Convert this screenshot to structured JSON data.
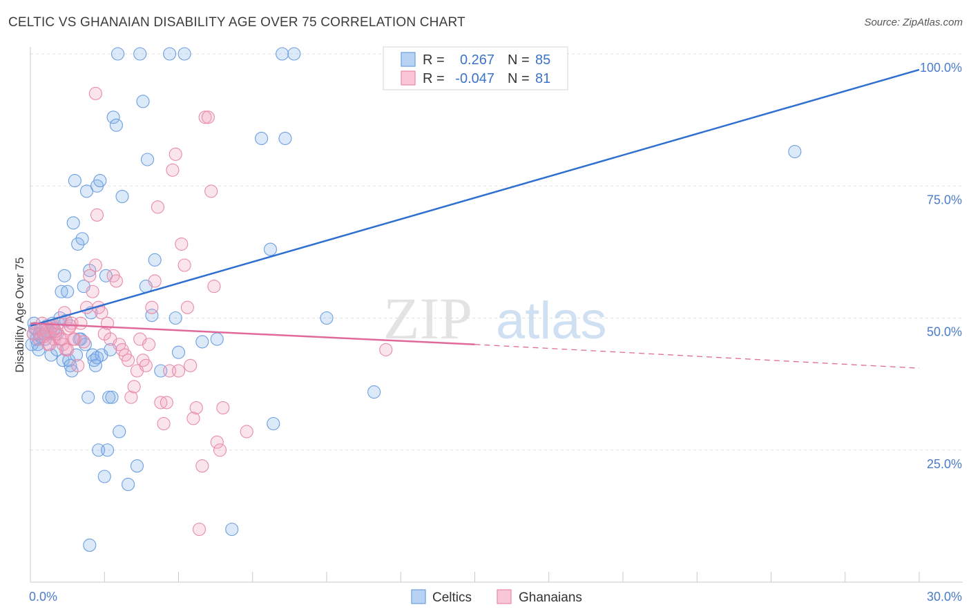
{
  "title": "CELTIC VS GHANAIAN DISABILITY AGE OVER 75 CORRELATION CHART",
  "source": "Source: ZipAtlas.com",
  "watermark": {
    "zip": "ZIP",
    "atlas": "atlas"
  },
  "chart_data": {
    "type": "scatter",
    "xlabel": "",
    "ylabel": "Disability Age Over 75",
    "xlim": [
      0,
      30
    ],
    "ylim": [
      0,
      102
    ],
    "x_tick_labels": [
      "0.0%",
      "30.0%"
    ],
    "y_ticks": [
      25,
      50,
      75,
      100
    ],
    "y_tick_labels": [
      "25.0%",
      "50.0%",
      "75.0%",
      "100.0%"
    ],
    "legend": {
      "r_label": "R =",
      "n_label": "N =",
      "entries": [
        {
          "name": "Celtics",
          "r": "0.267",
          "n": "85",
          "color": "#6b9ee0"
        },
        {
          "name": "Ghanaians",
          "r": "-0.047",
          "n": "81",
          "color": "#e88aa8"
        }
      ]
    },
    "series": [
      {
        "name": "Celtics",
        "color": "#6b9ee0",
        "trend": {
          "x0": 0,
          "y0": 48.5,
          "x1": 30,
          "y1": 97
        },
        "points": [
          [
            0.1,
            47
          ],
          [
            0.15,
            48
          ],
          [
            0.2,
            46
          ],
          [
            0.25,
            45
          ],
          [
            0.3,
            47
          ],
          [
            0.35,
            46.5
          ],
          [
            0.4,
            48
          ],
          [
            0.45,
            47
          ],
          [
            0.5,
            46
          ],
          [
            0.55,
            48.5
          ],
          [
            0.6,
            47
          ],
          [
            0.65,
            47.5
          ],
          [
            0.7,
            43
          ],
          [
            0.75,
            49
          ],
          [
            0.8,
            48
          ],
          [
            0.85,
            47
          ],
          [
            0.9,
            44
          ],
          [
            1.0,
            50
          ],
          [
            1.05,
            55
          ],
          [
            1.1,
            42
          ],
          [
            1.15,
            58
          ],
          [
            1.2,
            49.5
          ],
          [
            1.25,
            55
          ],
          [
            1.3,
            42
          ],
          [
            1.35,
            41
          ],
          [
            1.4,
            40
          ],
          [
            1.45,
            68
          ],
          [
            1.5,
            76
          ],
          [
            1.55,
            43
          ],
          [
            1.6,
            64
          ],
          [
            1.65,
            46
          ],
          [
            1.7,
            46
          ],
          [
            1.75,
            65
          ],
          [
            1.8,
            56
          ],
          [
            1.85,
            45
          ],
          [
            1.9,
            74
          ],
          [
            1.95,
            35
          ],
          [
            2.0,
            59
          ],
          [
            2.05,
            51
          ],
          [
            2.1,
            43
          ],
          [
            2.15,
            42
          ],
          [
            2.2,
            41
          ],
          [
            2.25,
            75
          ],
          [
            2.3,
            25
          ],
          [
            2.35,
            76
          ],
          [
            2.4,
            43
          ],
          [
            2.5,
            20
          ],
          [
            2.55,
            58
          ],
          [
            2.6,
            25
          ],
          [
            2.65,
            35
          ],
          [
            2.7,
            44
          ],
          [
            2.75,
            35
          ],
          [
            2.8,
            88
          ],
          [
            2.9,
            86.5
          ],
          [
            2.95,
            100
          ],
          [
            3.0,
            28.5
          ],
          [
            3.1,
            73
          ],
          [
            3.3,
            18.5
          ],
          [
            3.6,
            22
          ],
          [
            3.7,
            100
          ],
          [
            3.8,
            91
          ],
          [
            3.9,
            56
          ],
          [
            4.1,
            50.5
          ],
          [
            4.2,
            61
          ],
          [
            4.4,
            40
          ],
          [
            4.7,
            100
          ],
          [
            4.9,
            50
          ],
          [
            5.0,
            43.5
          ],
          [
            5.2,
            100
          ],
          [
            5.8,
            45.5
          ],
          [
            6.3,
            46
          ],
          [
            6.8,
            10
          ],
          [
            7.8,
            84
          ],
          [
            8.1,
            63
          ],
          [
            8.2,
            30
          ],
          [
            8.5,
            100
          ],
          [
            8.6,
            84
          ],
          [
            8.9,
            100
          ],
          [
            10.0,
            50
          ],
          [
            11.6,
            36
          ],
          [
            25.8,
            81.5
          ],
          [
            0.05,
            45
          ],
          [
            0.12,
            49
          ],
          [
            0.28,
            44
          ],
          [
            2.0,
            7
          ],
          [
            3.95,
            80
          ],
          [
            2.25,
            42.5
          ]
        ]
      },
      {
        "name": "Ghanaians",
        "color": "#e88aa8",
        "trend": {
          "x0": 0,
          "y0": 49,
          "x1": 15,
          "y1": 45,
          "dash_x1": 30,
          "dash_y1": 40.5
        },
        "points": [
          [
            0.1,
            47
          ],
          [
            0.2,
            48
          ],
          [
            0.3,
            46
          ],
          [
            0.4,
            49
          ],
          [
            0.5,
            47
          ],
          [
            0.6,
            45
          ],
          [
            0.7,
            48
          ],
          [
            0.8,
            46
          ],
          [
            0.9,
            47
          ],
          [
            1.0,
            46
          ],
          [
            1.1,
            45
          ],
          [
            1.2,
            44
          ],
          [
            1.3,
            48
          ],
          [
            1.4,
            49
          ],
          [
            1.5,
            46
          ],
          [
            1.6,
            41
          ],
          [
            1.7,
            49
          ],
          [
            1.8,
            45.5
          ],
          [
            1.9,
            52
          ],
          [
            2.0,
            58
          ],
          [
            2.1,
            55
          ],
          [
            2.2,
            60
          ],
          [
            2.3,
            52
          ],
          [
            2.4,
            51
          ],
          [
            2.5,
            47
          ],
          [
            2.6,
            49
          ],
          [
            2.7,
            46
          ],
          [
            2.8,
            58
          ],
          [
            2.9,
            57
          ],
          [
            3.0,
            45
          ],
          [
            3.1,
            44
          ],
          [
            3.2,
            43
          ],
          [
            3.3,
            42
          ],
          [
            3.4,
            35
          ],
          [
            3.5,
            37
          ],
          [
            3.6,
            40
          ],
          [
            3.7,
            46
          ],
          [
            3.8,
            42
          ],
          [
            3.9,
            41
          ],
          [
            4.0,
            45
          ],
          [
            4.1,
            52
          ],
          [
            4.2,
            57
          ],
          [
            4.3,
            71
          ],
          [
            4.4,
            34
          ],
          [
            4.5,
            30
          ],
          [
            4.6,
            34
          ],
          [
            4.7,
            40
          ],
          [
            4.8,
            78
          ],
          [
            4.9,
            81
          ],
          [
            5.0,
            40
          ],
          [
            5.1,
            64
          ],
          [
            5.2,
            60
          ],
          [
            5.3,
            52
          ],
          [
            5.4,
            41
          ],
          [
            5.5,
            31
          ],
          [
            5.6,
            33
          ],
          [
            5.7,
            10
          ],
          [
            5.8,
            22
          ],
          [
            5.9,
            88
          ],
          [
            6.0,
            88
          ],
          [
            6.1,
            74
          ],
          [
            6.2,
            56
          ],
          [
            6.3,
            26.5
          ],
          [
            6.4,
            25
          ],
          [
            6.5,
            33
          ],
          [
            7.3,
            28.5
          ],
          [
            12.0,
            44
          ],
          [
            2.2,
            92.5
          ],
          [
            2.25,
            69.5
          ],
          [
            0.35,
            48
          ],
          [
            0.45,
            46.5
          ],
          [
            0.55,
            47.5
          ],
          [
            0.65,
            45
          ],
          [
            0.75,
            48.5
          ],
          [
            0.85,
            47.5
          ],
          [
            0.95,
            49
          ],
          [
            1.05,
            46
          ],
          [
            1.15,
            51
          ],
          [
            1.25,
            44
          ],
          [
            1.35,
            48.5
          ],
          [
            1.45,
            46
          ]
        ]
      }
    ]
  }
}
